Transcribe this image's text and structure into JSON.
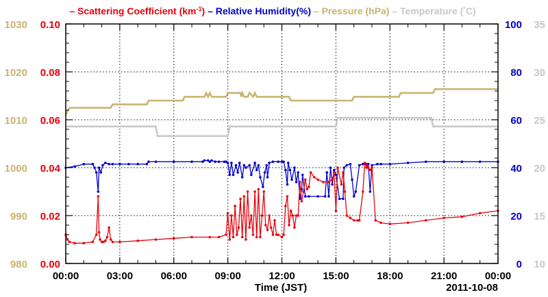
{
  "chart_data": {
    "type": "line",
    "title_parts": [
      {
        "text": "– Scattering Coefficient (km",
        "color": "#e8000b"
      },
      {
        "text": "-1",
        "color": "#e8000b",
        "sup": true
      },
      {
        "text": ") ",
        "color": "#e8000b"
      },
      {
        "text": "– Relative Humidity(%) ",
        "color": "#0000cc"
      },
      {
        "text": "– Pressure (hPa) ",
        "color": "#c8b46e"
      },
      {
        "text": "– Temperature (",
        "color": "#c8c8c8"
      },
      {
        "text": "°",
        "color": "#c8c8c8",
        "sup": true
      },
      {
        "text": "C)",
        "color": "#c8c8c8"
      }
    ],
    "xlabel": "Time (JST)",
    "date_label": "2011-10-08",
    "grid": true,
    "x_ticks": [
      "00:00",
      "03:00",
      "06:00",
      "09:00",
      "12:00",
      "15:00",
      "18:00",
      "21:00",
      "00:00"
    ],
    "x_range_hours": [
      0,
      24
    ],
    "axes": {
      "pressure": {
        "ylim": [
          980,
          1030
        ],
        "ticks": [
          "980",
          "990",
          "1000",
          "1010",
          "1020",
          "1030"
        ],
        "color": "#c8b46e"
      },
      "scattering": {
        "ylim": [
          0,
          0.1
        ],
        "ticks": [
          "0.00",
          "0.02",
          "0.04",
          "0.06",
          "0.08",
          "0.10"
        ],
        "color": "#e8000b"
      },
      "humidity": {
        "ylim": [
          0,
          100
        ],
        "ticks": [
          "0",
          "20",
          "40",
          "60",
          "80",
          "100"
        ],
        "color": "#0000cc"
      },
      "temperature": {
        "ylim": [
          10,
          35
        ],
        "ticks": [
          "10",
          "15",
          "20",
          "25",
          "30",
          "35"
        ],
        "color": "#c8c8c8"
      }
    },
    "series": [
      {
        "name": "Pressure (hPa)",
        "axis": "pressure",
        "color": "#c8b46e",
        "markers": false,
        "x": [
          0,
          0.1,
          0.2,
          2.5,
          2.6,
          4.5,
          4.6,
          6.5,
          6.6,
          7.7,
          7.8,
          7.9,
          8,
          8.1,
          8.2,
          8.9,
          9,
          9.7,
          9.75,
          9.8,
          9.9,
          10.1,
          10.2,
          10.4,
          10.5,
          10.6,
          10.7,
          12.4,
          12.5,
          15.9,
          16,
          18.5,
          18.6,
          20.4,
          20.5,
          24
        ],
        "y": [
          1011,
          1011.8,
          1012.5,
          1012.5,
          1013.2,
          1013.2,
          1014,
          1014,
          1014.8,
          1014.8,
          1015.6,
          1014.8,
          1015.6,
          1014.8,
          1014.8,
          1014.8,
          1015.6,
          1015.6,
          1014.8,
          1015.6,
          1014.8,
          1014.8,
          1015.6,
          1014.8,
          1015.6,
          1014.8,
          1014.8,
          1014.8,
          1014,
          1014,
          1014.8,
          1014.8,
          1015.6,
          1015.6,
          1016.4,
          1016.4
        ]
      },
      {
        "name": "Temperature (°C)",
        "axis": "temperature",
        "color": "#c8c8c8",
        "markers": false,
        "x": [
          0,
          5,
          5.1,
          9,
          9.1,
          15,
          15.1,
          20.3,
          20.4,
          24
        ],
        "y": [
          24.3,
          24.3,
          23.3,
          23.3,
          24.3,
          24.3,
          25.2,
          25.2,
          24.3,
          24.3
        ]
      },
      {
        "name": "Relative Humidity(%)",
        "axis": "humidity",
        "color": "#0000cc",
        "markers": true,
        "x": [
          0,
          0.5,
          1,
          1.5,
          1.6,
          1.7,
          1.8,
          1.85,
          1.95,
          2.05,
          2.2,
          2.4,
          2.6,
          3,
          3.5,
          4,
          4.5,
          4.6,
          5,
          6,
          7,
          7.6,
          7.7,
          7.9,
          8,
          8.1,
          8.3,
          8.5,
          8.8,
          8.9,
          9,
          9.1,
          9.2,
          9.3,
          9.45,
          9.55,
          9.65,
          9.8,
          9.9,
          10,
          10.2,
          10.3,
          10.5,
          10.6,
          10.7,
          10.8,
          10.95,
          11.05,
          11.15,
          11.2,
          11.3,
          11.5,
          11.8,
          12,
          12.1,
          12.2,
          12.3,
          12.35,
          12.45,
          12.55,
          12.7,
          12.8,
          12.9,
          13,
          13.1,
          13.15,
          13.3,
          13.5,
          14,
          14.4,
          14.5,
          14.6,
          14.7,
          14.8,
          14.9,
          15,
          15.2,
          15.4,
          15.45,
          15.6,
          15.8,
          15.9,
          16,
          16.1,
          16.3,
          16.5,
          16.7,
          16.8,
          16.9,
          17,
          17.3,
          17.5,
          18,
          19,
          20,
          21,
          22,
          23,
          24
        ],
        "y": [
          40,
          40.5,
          41.5,
          41.5,
          40,
          38,
          30,
          40,
          38,
          41,
          42,
          41.5,
          41.5,
          41.5,
          41.5,
          41.5,
          41.5,
          42.5,
          42.5,
          42.5,
          42.5,
          42.5,
          43,
          43,
          42.5,
          43,
          42.5,
          42.5,
          42.5,
          42.5,
          42,
          37,
          42,
          37,
          41,
          38,
          42,
          36,
          41,
          40,
          41,
          37,
          42,
          39,
          41,
          36,
          32,
          38,
          41,
          36,
          42,
          42.5,
          42.5,
          42.5,
          42.5,
          39,
          33,
          42,
          39,
          35,
          40,
          34,
          38,
          27,
          31,
          37,
          28,
          28,
          28,
          28,
          38,
          28,
          40,
          33,
          39,
          37,
          27,
          27,
          40,
          41,
          41.5,
          35,
          28,
          30,
          41,
          41.5,
          41.5,
          41.5,
          30,
          41,
          41.5,
          41.5,
          41.5,
          42,
          42.5,
          42.5,
          42.5,
          42.5,
          42.5
        ]
      },
      {
        "name": "Scattering Coefficient (km-1)",
        "axis": "scattering",
        "color": "#e8000b",
        "markers": true,
        "x": [
          0,
          0.1,
          0.2,
          0.5,
          1,
          1.5,
          1.7,
          1.8,
          1.85,
          1.9,
          2,
          2.1,
          2.2,
          2.3,
          2.4,
          2.5,
          2.6,
          3,
          4,
          5,
          6,
          7,
          8,
          8.5,
          8.9,
          9,
          9.1,
          9.2,
          9.3,
          9.4,
          9.5,
          9.6,
          9.7,
          9.8,
          9.9,
          10,
          10.1,
          10.2,
          10.3,
          10.4,
          10.5,
          10.6,
          10.7,
          10.8,
          10.9,
          11,
          11.1,
          11.2,
          11.3,
          11.4,
          11.5,
          11.6,
          11.7,
          11.8,
          12,
          12.1,
          12.2,
          12.3,
          12.4,
          12.5,
          12.6,
          12.7,
          12.8,
          12.9,
          13,
          13.1,
          13.2,
          13.3,
          13.4,
          13.5,
          13.6,
          13.8,
          14,
          14.3,
          14.6,
          14.8,
          14.9,
          15,
          15.1,
          15.3,
          15.4,
          15.5,
          15.6,
          15.8,
          16,
          16.2,
          16.3,
          16.5,
          16.6,
          16.7,
          16.75,
          16.8,
          16.9,
          17,
          17.2,
          17.5,
          18,
          19,
          20,
          21,
          22,
          23,
          24
        ],
        "y": [
          0.012,
          0.01,
          0.009,
          0.0085,
          0.0085,
          0.009,
          0.012,
          0.028,
          0.013,
          0.01,
          0.009,
          0.009,
          0.0095,
          0.011,
          0.015,
          0.01,
          0.009,
          0.009,
          0.0095,
          0.01,
          0.0105,
          0.011,
          0.011,
          0.011,
          0.012,
          0.021,
          0.01,
          0.02,
          0.011,
          0.024,
          0.012,
          0.015,
          0.027,
          0.011,
          0.028,
          0.01,
          0.03,
          0.015,
          0.02,
          0.012,
          0.03,
          0.011,
          0.031,
          0.011,
          0.02,
          0.03,
          0.016,
          0.014,
          0.02,
          0.015,
          0.012,
          0.018,
          0.012,
          0.012,
          0.011,
          0.012,
          0.024,
          0.028,
          0.016,
          0.022,
          0.02,
          0.015,
          0.02,
          0.02,
          0.034,
          0.026,
          0.03,
          0.035,
          0.031,
          0.032,
          0.038,
          0.036,
          0.035,
          0.034,
          0.034,
          0.035,
          0.038,
          0.022,
          0.04,
          0.033,
          0.038,
          0.03,
          0.02,
          0.019,
          0.018,
          0.018,
          0.018,
          0.03,
          0.042,
          0.04,
          0.041,
          0.04,
          0.039,
          0.04,
          0.018,
          0.017,
          0.0165,
          0.017,
          0.018,
          0.019,
          0.0195,
          0.021,
          0.022
        ]
      }
    ]
  }
}
